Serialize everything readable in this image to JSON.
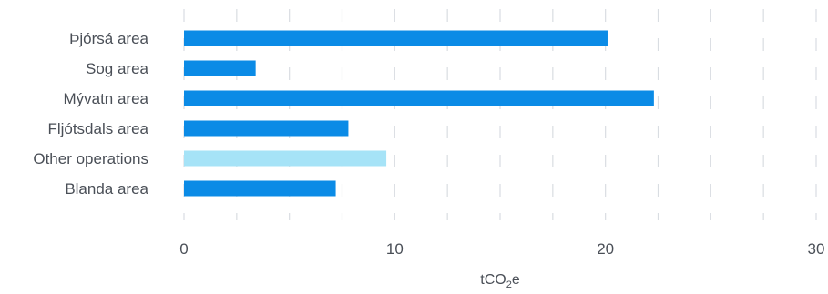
{
  "chart_data": {
    "type": "bar",
    "orientation": "horizontal",
    "categories": [
      "Þjórsá area",
      "Sog area",
      "Mývatn area",
      "Fljótsdals area",
      "Other operations",
      "Blanda area"
    ],
    "values": [
      20.1,
      3.4,
      22.3,
      7.8,
      9.6,
      7.2
    ],
    "xlabel": "tCO",
    "xlabel_sub": "2",
    "xlabel_suffix": "e",
    "xlim": [
      0,
      30
    ],
    "xticks": [
      0,
      10,
      20,
      30
    ],
    "grid": "vertical-dashed",
    "colors": {
      "bar": "#0b8be6",
      "highlight": "#a6e3f7",
      "grid": "#d9dde2",
      "text": "#4a4f57"
    },
    "highlight_index": 4
  }
}
